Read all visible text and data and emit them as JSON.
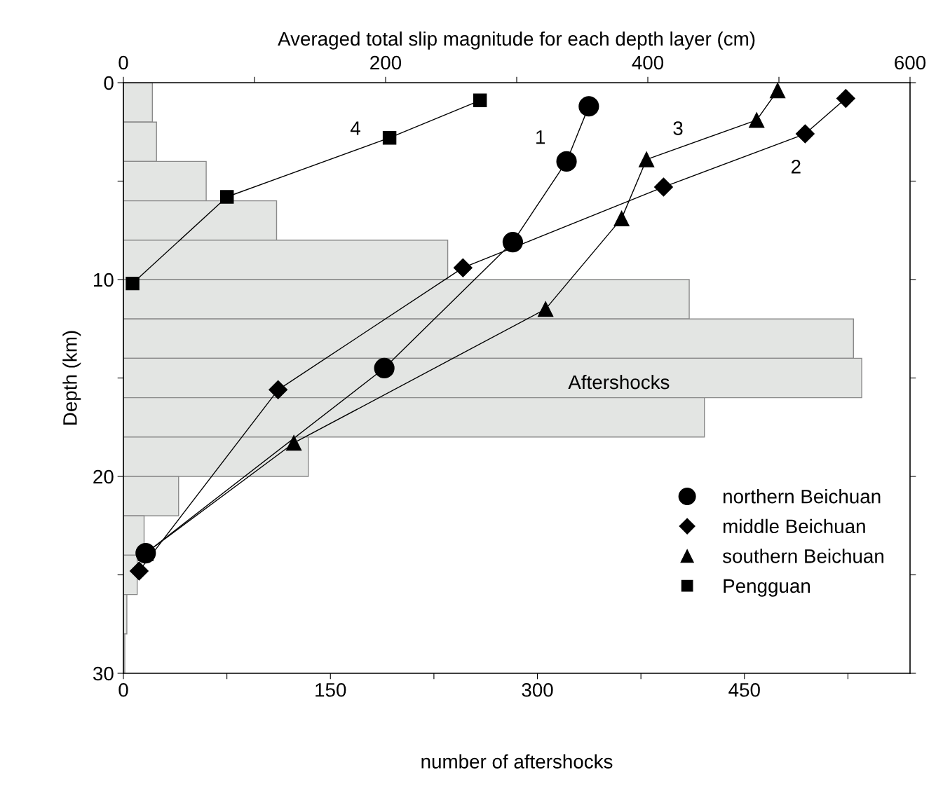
{
  "chart_data": {
    "type": "histogram",
    "orientation": "horizontal",
    "xlabel": "number of aftershocks",
    "ylabel": "Depth (km)",
    "x2label": "Averaged total slip magnitude for each depth layer (cm)",
    "bins": [
      0,
      2,
      4,
      6,
      8,
      10,
      12,
      14,
      16,
      18,
      20,
      22,
      24,
      26,
      28,
      30
    ],
    "values": [
      21,
      24,
      60,
      111,
      235,
      410,
      529,
      535,
      421,
      134,
      40,
      15,
      10,
      2.5,
      1
    ],
    "color": "#e3e5e3",
    "xlim": [
      0,
      570
    ],
    "xticks": [
      0,
      {
        "value": 75,
        "label": null
      },
      150,
      {
        "value": 225,
        "label": null
      },
      300,
      {
        "value": 375,
        "label": null
      },
      450,
      {
        "value": 525,
        "label": null
      }
    ],
    "x2lim": [
      0,
      600
    ],
    "x2ticks": [
      0,
      {
        "value": 100,
        "label": null
      },
      200,
      {
        "value": 300,
        "label": null
      },
      400,
      {
        "value": 500,
        "label": null
      },
      600
    ],
    "ylim": [
      30,
      0
    ],
    "yticks": [
      0,
      {
        "value": 5,
        "label": null
      },
      10,
      {
        "value": 15,
        "label": null
      },
      20,
      {
        "value": 25,
        "label": null
      },
      30
    ],
    "grid": false,
    "legend": "bottom right",
    "line_style": "solid",
    "series": [
      {
        "name": "northern Beichuan",
        "type": "line",
        "axis": "x2",
        "marker": "circle",
        "color": "#000000",
        "x": [
          1.2,
          4.0,
          8.1,
          14.5,
          23.9
        ],
        "values": [
          355,
          338,
          297,
          199,
          17
        ]
      },
      {
        "name": "middle Beichuan",
        "type": "line",
        "axis": "x2",
        "marker": "diamond",
        "color": "#000000",
        "x": [
          0.8,
          2.6,
          5.3,
          9.4,
          15.6,
          24.8
        ],
        "values": [
          551,
          520,
          412,
          259,
          118,
          12
        ]
      },
      {
        "name": "southern Beichuan",
        "type": "line",
        "axis": "x2",
        "marker": "triangle",
        "color": "#000000",
        "x": [
          0.4,
          1.9,
          3.9,
          6.9,
          11.5,
          18.3,
          23.9
        ],
        "values": [
          499,
          483,
          399,
          380,
          322,
          130,
          17
        ]
      },
      {
        "name": "Pengguan",
        "type": "line",
        "axis": "x2",
        "marker": "square",
        "color": "#000000",
        "x": [
          0.9,
          2.8,
          5.8,
          10.2
        ],
        "values": [
          272,
          203,
          79,
          7
        ]
      }
    ],
    "annotations": [
      "1",
      "2",
      "3",
      "4",
      "Aftershocks"
    ]
  }
}
